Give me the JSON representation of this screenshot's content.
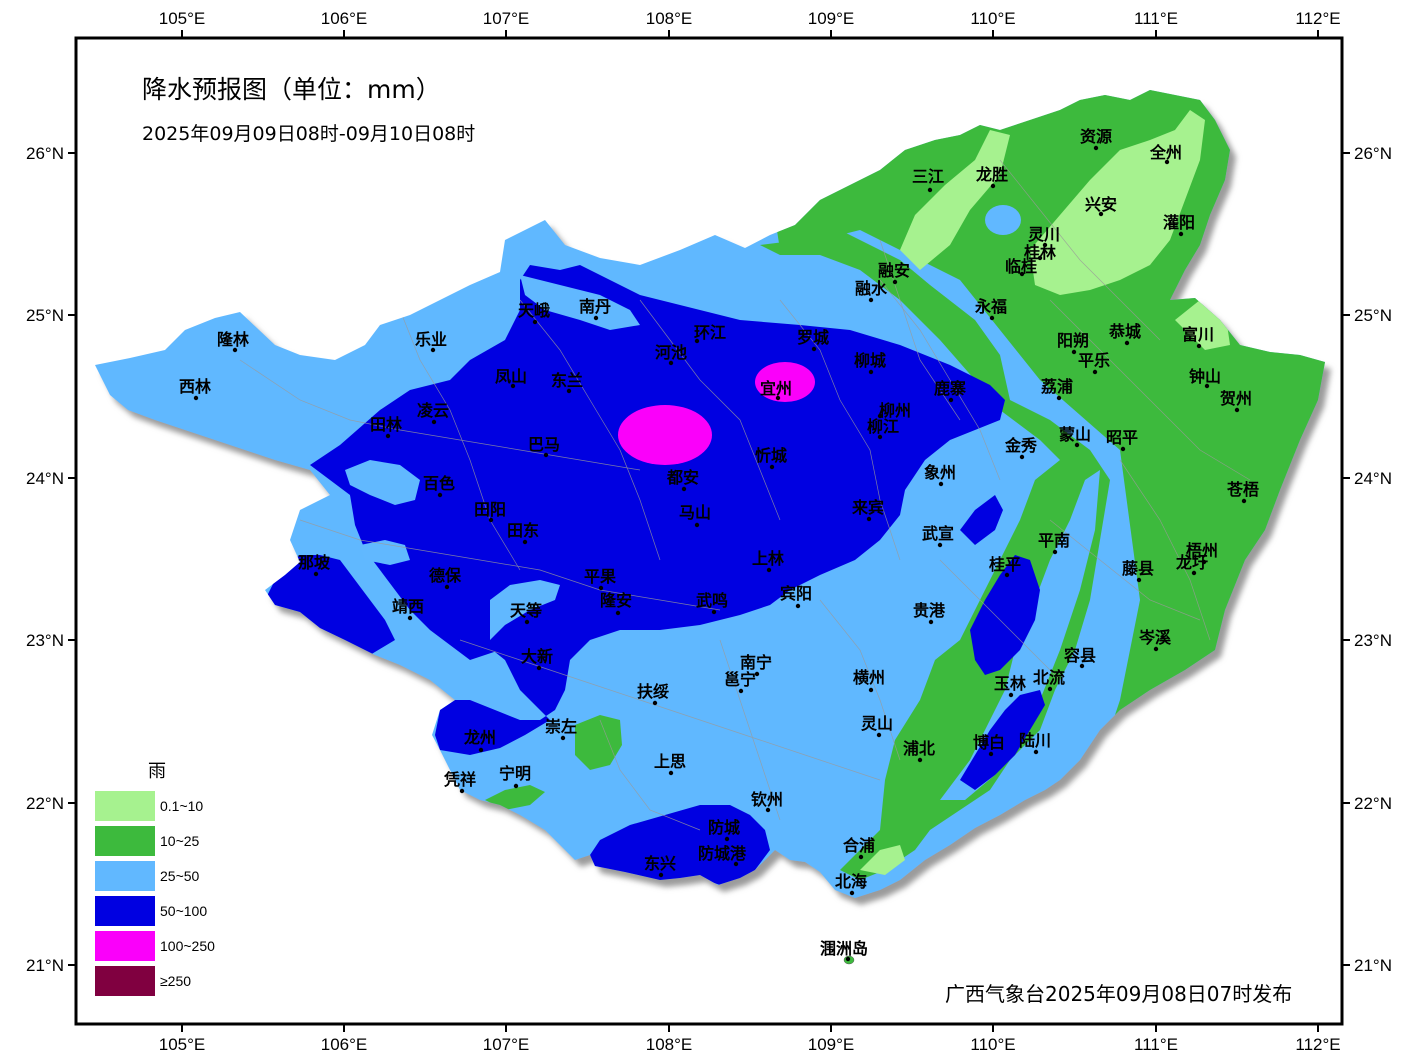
{
  "title": "降水预报图（单位：mm）",
  "period": "2025年09月09日08时-09月10日08时",
  "issuer": "广西气象台2025年09月08日07时发布",
  "axes": {
    "lon_ticks": [
      "105°E",
      "106°E",
      "107°E",
      "108°E",
      "109°E",
      "110°E",
      "111°E",
      "112°E"
    ],
    "lat_ticks": [
      "26°N",
      "25°N",
      "24°N",
      "23°N",
      "22°N",
      "21°N"
    ]
  },
  "legend": {
    "title": "雨",
    "items": [
      {
        "label": "0.1~10",
        "color": "#a6f28f"
      },
      {
        "label": "10~25",
        "color": "#3dba3d"
      },
      {
        "label": "25~50",
        "color": "#61b8ff"
      },
      {
        "label": "50~100",
        "color": "#0000e1"
      },
      {
        "label": "100~250",
        "color": "#fa00fa"
      },
      {
        "label": "≥250",
        "color": "#800040"
      }
    ]
  },
  "cities": [
    {
      "name": "三江"
    },
    {
      "name": "龙胜"
    },
    {
      "name": "资源"
    },
    {
      "name": "全州"
    },
    {
      "name": "兴安"
    },
    {
      "name": "灌阳"
    },
    {
      "name": "灵川"
    },
    {
      "name": "桂林"
    },
    {
      "name": "临桂"
    },
    {
      "name": "融安"
    },
    {
      "name": "融水"
    },
    {
      "name": "永福"
    },
    {
      "name": "天峨"
    },
    {
      "name": "南丹"
    },
    {
      "name": "环江"
    },
    {
      "name": "罗城"
    },
    {
      "name": "隆林"
    },
    {
      "name": "乐业"
    },
    {
      "name": "河池"
    },
    {
      "name": "宜州"
    },
    {
      "name": "柳城"
    },
    {
      "name": "阳朔"
    },
    {
      "name": "恭城"
    },
    {
      "name": "富川"
    },
    {
      "name": "西林"
    },
    {
      "name": "凤山"
    },
    {
      "name": "东兰"
    },
    {
      "name": "平乐"
    },
    {
      "name": "钟山"
    },
    {
      "name": "鹿寨"
    },
    {
      "name": "荔浦"
    },
    {
      "name": "贺州"
    },
    {
      "name": "凌云"
    },
    {
      "name": "田林"
    },
    {
      "name": "柳州"
    },
    {
      "name": "柳江"
    },
    {
      "name": "巴马"
    },
    {
      "name": "金秀"
    },
    {
      "name": "蒙山"
    },
    {
      "name": "昭平"
    },
    {
      "name": "忻城"
    },
    {
      "name": "都安"
    },
    {
      "name": "象州"
    },
    {
      "name": "百色"
    },
    {
      "name": "苍梧"
    },
    {
      "name": "田阳"
    },
    {
      "name": "马山"
    },
    {
      "name": "来宾"
    },
    {
      "name": "田东"
    },
    {
      "name": "武宣"
    },
    {
      "name": "平南"
    },
    {
      "name": "梧州"
    },
    {
      "name": "那坡"
    },
    {
      "name": "上林"
    },
    {
      "name": "桂平"
    },
    {
      "name": "藤县"
    },
    {
      "name": "龙圩"
    },
    {
      "name": "德保"
    },
    {
      "name": "平果"
    },
    {
      "name": "隆安"
    },
    {
      "name": "宾阳"
    },
    {
      "name": "靖西"
    },
    {
      "name": "天等"
    },
    {
      "name": "武鸣"
    },
    {
      "name": "贵港"
    },
    {
      "name": "岑溪"
    },
    {
      "name": "大新"
    },
    {
      "name": "南宁"
    },
    {
      "name": "邕宁"
    },
    {
      "name": "横州"
    },
    {
      "name": "容县"
    },
    {
      "name": "扶绥"
    },
    {
      "name": "玉林"
    },
    {
      "name": "北流"
    },
    {
      "name": "崇左"
    },
    {
      "name": "龙州"
    },
    {
      "name": "灵山"
    },
    {
      "name": "浦北"
    },
    {
      "name": "博白"
    },
    {
      "name": "陆川"
    },
    {
      "name": "凭祥"
    },
    {
      "name": "宁明"
    },
    {
      "name": "上思"
    },
    {
      "name": "钦州"
    },
    {
      "name": "防城"
    },
    {
      "name": "合浦"
    },
    {
      "name": "东兴"
    },
    {
      "name": "防城港"
    },
    {
      "name": "北海"
    },
    {
      "name": "涠洲岛"
    }
  ]
}
